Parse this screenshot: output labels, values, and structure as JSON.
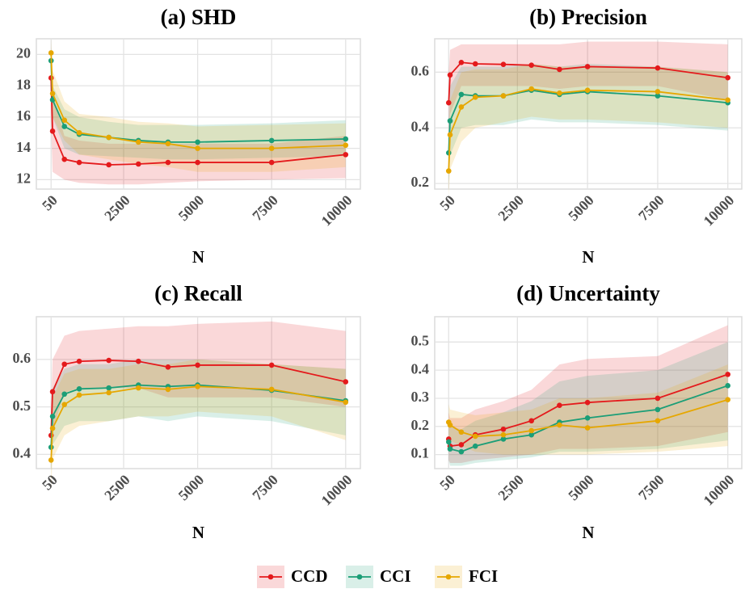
{
  "chart_data": [
    {
      "type": "line",
      "title": "(a) SHD",
      "x_label": "N",
      "x": [
        50,
        100,
        500,
        1000,
        2000,
        3000,
        4000,
        5000,
        7500,
        10000
      ],
      "xlim": [
        -447.5,
        10497.5
      ],
      "xticks": [
        50,
        2500,
        5000,
        7500,
        10000
      ],
      "ylim": [
        11.4,
        21.0
      ],
      "yticks": [
        12,
        14,
        16,
        18,
        20
      ],
      "grid": true,
      "series": [
        {
          "name": "CCD",
          "color": "#e41a1c",
          "values": [
            18.5,
            15.1,
            13.3,
            13.1,
            12.95,
            13.0,
            13.1,
            13.1,
            13.1,
            13.6
          ],
          "lower": [
            15.5,
            12.5,
            12,
            11.8,
            11.7,
            11.7,
            11.8,
            11.9,
            12,
            12.1
          ],
          "upper": [
            19.5,
            17.5,
            14.8,
            14.5,
            14.3,
            14.3,
            14.3,
            14.3,
            14.3,
            14.8
          ]
        },
        {
          "name": "CCI",
          "color": "#1b9e77",
          "values": [
            19.6,
            17.1,
            15.4,
            14.9,
            14.7,
            14.5,
            14.4,
            14.4,
            14.5,
            14.6
          ],
          "lower": [
            18.5,
            16,
            14,
            13.6,
            13.5,
            13.4,
            13.3,
            13.3,
            13.4,
            13.5
          ],
          "upper": [
            20.5,
            18,
            16.5,
            16,
            15.7,
            15.5,
            15.5,
            15.5,
            15.6,
            15.8
          ]
        },
        {
          "name": "FCI",
          "color": "#e6a700",
          "values": [
            20.1,
            17.5,
            15.8,
            15.0,
            14.7,
            14.4,
            14.3,
            14.0,
            14.0,
            14.2
          ],
          "lower": [
            19.2,
            16,
            14.5,
            13.6,
            13.3,
            13,
            12.8,
            12.5,
            12.5,
            12.8
          ],
          "upper": [
            21,
            19,
            17,
            16.2,
            16,
            15.7,
            15.6,
            15.4,
            15.5,
            15.6
          ]
        }
      ]
    },
    {
      "type": "line",
      "title": "(b) Precision",
      "x_label": "N",
      "x": [
        50,
        100,
        500,
        1000,
        2000,
        3000,
        4000,
        5000,
        7500,
        10000
      ],
      "xlim": [
        -447.5,
        10497.5
      ],
      "xticks": [
        50,
        2500,
        5000,
        7500,
        10000
      ],
      "ylim": [
        0.18,
        0.72
      ],
      "yticks": [
        0.2,
        0.4,
        0.6
      ],
      "grid": true,
      "series": [
        {
          "name": "CCD",
          "color": "#e41a1c",
          "values": [
            0.49,
            0.59,
            0.635,
            0.63,
            0.628,
            0.625,
            0.61,
            0.62,
            0.615,
            0.58
          ],
          "lower": [
            0.35,
            0.45,
            0.55,
            0.55,
            0.55,
            0.55,
            0.54,
            0.55,
            0.55,
            0.5
          ],
          "upper": [
            0.6,
            0.68,
            0.7,
            0.7,
            0.7,
            0.7,
            0.7,
            0.71,
            0.71,
            0.7
          ]
        },
        {
          "name": "CCI",
          "color": "#1b9e77",
          "values": [
            0.31,
            0.425,
            0.52,
            0.515,
            0.515,
            0.535,
            0.52,
            0.53,
            0.515,
            0.49
          ],
          "lower": [
            0.2,
            0.3,
            0.4,
            0.41,
            0.41,
            0.43,
            0.42,
            0.42,
            0.41,
            0.39
          ],
          "upper": [
            0.42,
            0.55,
            0.62,
            0.62,
            0.62,
            0.63,
            0.62,
            0.63,
            0.62,
            0.6
          ]
        },
        {
          "name": "FCI",
          "color": "#e6a700",
          "values": [
            0.245,
            0.375,
            0.475,
            0.51,
            0.515,
            0.54,
            0.525,
            0.535,
            0.53,
            0.5
          ],
          "lower": [
            0.15,
            0.25,
            0.35,
            0.4,
            0.42,
            0.44,
            0.43,
            0.43,
            0.42,
            0.4
          ],
          "upper": [
            0.35,
            0.5,
            0.6,
            0.61,
            0.61,
            0.63,
            0.62,
            0.62,
            0.62,
            0.6
          ]
        }
      ]
    },
    {
      "type": "line",
      "title": "(c) Recall",
      "x_label": "N",
      "x": [
        50,
        100,
        500,
        1000,
        2000,
        3000,
        4000,
        5000,
        7500,
        10000
      ],
      "xlim": [
        -447.5,
        10497.5
      ],
      "xticks": [
        50,
        2500,
        5000,
        7500,
        10000
      ],
      "ylim": [
        0.37,
        0.69
      ],
      "yticks": [
        0.4,
        0.5,
        0.6
      ],
      "grid": true,
      "series": [
        {
          "name": "CCD",
          "color": "#e41a1c",
          "values": [
            0.44,
            0.532,
            0.59,
            0.596,
            0.598,
            0.596,
            0.584,
            0.588,
            0.588,
            0.553
          ],
          "lower": [
            0.38,
            0.45,
            0.53,
            0.54,
            0.54,
            0.54,
            0.52,
            0.52,
            0.52,
            0.5
          ],
          "upper": [
            0.5,
            0.6,
            0.65,
            0.66,
            0.665,
            0.67,
            0.67,
            0.675,
            0.68,
            0.66
          ]
        },
        {
          "name": "CCI",
          "color": "#1b9e77",
          "values": [
            0.415,
            0.48,
            0.527,
            0.538,
            0.54,
            0.546,
            0.543,
            0.546,
            0.535,
            0.513
          ],
          "lower": [
            0.36,
            0.42,
            0.46,
            0.47,
            0.47,
            0.48,
            0.47,
            0.48,
            0.47,
            0.44
          ],
          "upper": [
            0.46,
            0.54,
            0.58,
            0.59,
            0.59,
            0.6,
            0.6,
            0.6,
            0.59,
            0.58
          ]
        },
        {
          "name": "FCI",
          "color": "#e6a700",
          "values": [
            0.388,
            0.455,
            0.505,
            0.525,
            0.53,
            0.54,
            0.537,
            0.543,
            0.537,
            0.51
          ],
          "lower": [
            0.33,
            0.39,
            0.44,
            0.46,
            0.47,
            0.48,
            0.48,
            0.49,
            0.48,
            0.43
          ],
          "upper": [
            0.44,
            0.52,
            0.57,
            0.58,
            0.58,
            0.59,
            0.59,
            0.6,
            0.59,
            0.58
          ]
        }
      ]
    },
    {
      "type": "line",
      "title": "(d) Uncertainty",
      "x_label": "N",
      "x": [
        50,
        100,
        500,
        1000,
        2000,
        3000,
        4000,
        5000,
        7500,
        10000
      ],
      "xlim": [
        -447.5,
        10497.5
      ],
      "xticks": [
        50,
        2500,
        5000,
        7500,
        10000
      ],
      "ylim": [
        0.05,
        0.59
      ],
      "yticks": [
        0.1,
        0.2,
        0.3,
        0.4,
        0.5
      ],
      "grid": true,
      "series": [
        {
          "name": "CCD",
          "color": "#e41a1c",
          "values": [
            0.155,
            0.13,
            0.135,
            0.17,
            0.19,
            0.22,
            0.275,
            0.285,
            0.3,
            0.385
          ],
          "lower": [
            0.08,
            0.07,
            0.07,
            0.08,
            0.09,
            0.1,
            0.12,
            0.12,
            0.13,
            0.18
          ],
          "upper": [
            0.25,
            0.23,
            0.23,
            0.26,
            0.29,
            0.33,
            0.42,
            0.44,
            0.45,
            0.56
          ]
        },
        {
          "name": "CCI",
          "color": "#1b9e77",
          "values": [
            0.145,
            0.12,
            0.11,
            0.13,
            0.155,
            0.17,
            0.215,
            0.23,
            0.26,
            0.345
          ],
          "lower": [
            0.08,
            0.06,
            0.06,
            0.07,
            0.08,
            0.09,
            0.11,
            0.11,
            0.12,
            0.15
          ],
          "upper": [
            0.22,
            0.2,
            0.19,
            0.22,
            0.25,
            0.29,
            0.36,
            0.38,
            0.4,
            0.5
          ]
        },
        {
          "name": "FCI",
          "color": "#e6a700",
          "values": [
            0.215,
            0.205,
            0.18,
            0.165,
            0.17,
            0.185,
            0.205,
            0.195,
            0.22,
            0.295
          ],
          "lower": [
            0.17,
            0.15,
            0.13,
            0.11,
            0.1,
            0.1,
            0.1,
            0.1,
            0.11,
            0.13
          ],
          "upper": [
            0.28,
            0.26,
            0.25,
            0.24,
            0.25,
            0.26,
            0.3,
            0.3,
            0.32,
            0.42
          ]
        }
      ]
    }
  ]
}
